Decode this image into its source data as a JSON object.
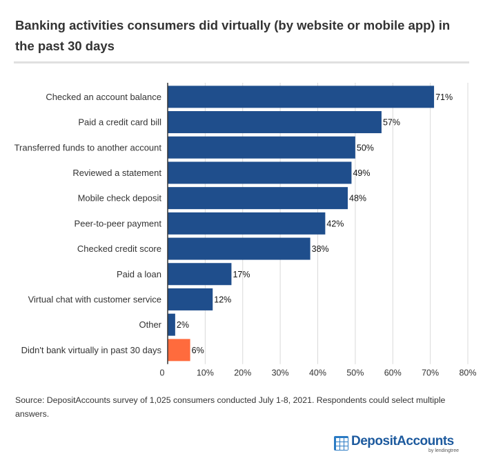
{
  "title": "Banking activities consumers did virtually (by website or mobile app) in the past 30 days",
  "source": "Source: DepositAccounts survey of 1,025 consumers conducted July 1-8, 2021. Respondents could select multiple answers.",
  "logo": {
    "name": "DepositAccounts",
    "sub": "by lendingtree"
  },
  "colors": {
    "primary_bar": "#1f4e8c",
    "highlight_bar": "#ff6b3d",
    "grid": "#d9d9d9",
    "axis": "#333333"
  },
  "chart_data": {
    "type": "bar",
    "orientation": "horizontal",
    "categories": [
      "Checked an account balance",
      "Paid a credit card bill",
      "Transferred funds to another account",
      "Reviewed a statement",
      "Mobile check deposit",
      "Peer-to-peer payment",
      "Checked credit score",
      "Paid a loan",
      "Virtual chat with customer service",
      "Other",
      "Didn't bank virtually in past 30 days"
    ],
    "values": [
      71,
      57,
      50,
      49,
      48,
      42,
      38,
      17,
      12,
      2,
      6
    ],
    "value_labels": [
      "71%",
      "57%",
      "50%",
      "49%",
      "48%",
      "42%",
      "38%",
      "17%",
      "12%",
      "2%",
      "6%"
    ],
    "highlight_index": 10,
    "xlim": [
      0,
      80
    ],
    "xticks": [
      0,
      10,
      20,
      30,
      40,
      50,
      60,
      70,
      80
    ],
    "xtick_labels": [
      "0",
      "10%",
      "20%",
      "30%",
      "40%",
      "50%",
      "60%",
      "70%",
      "80%"
    ],
    "grid": true,
    "legend": "none"
  }
}
